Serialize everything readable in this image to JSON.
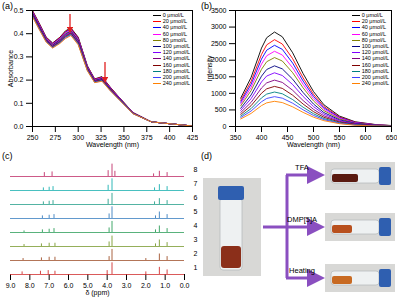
{
  "chart_data": [
    {
      "type": "line",
      "title": "(a)",
      "x_label": "Wavelength (nm)",
      "y_label": "Absorbance",
      "x": [
        250,
        258,
        265,
        272,
        280,
        286,
        292,
        300,
        310,
        318,
        326,
        335,
        345,
        360,
        380,
        425
      ],
      "xlim": [
        250,
        425
      ],
      "xticks": [
        250,
        275,
        300,
        325,
        350,
        375,
        400,
        425
      ],
      "ylim": [
        0,
        0.5
      ],
      "yticks": [
        {
          "value": 0,
          "label": "0.0"
        },
        {
          "value": 0.1,
          "label": "0.1"
        },
        {
          "value": 0.2,
          "label": "0.2"
        },
        {
          "value": 0.3,
          "label": "0.3"
        },
        {
          "value": 0.4,
          "label": "0.4"
        },
        {
          "value": 0.5,
          "label": "0.5"
        }
      ],
      "legend": "top-right",
      "series": [
        {
          "name": "0 μmol/L",
          "color": "#000000",
          "values": [
            0.5,
            0.44,
            0.385,
            0.36,
            0.385,
            0.412,
            0.425,
            0.385,
            0.262,
            0.205,
            0.215,
            0.17,
            0.125,
            0.06,
            0.02,
            0.002
          ]
        },
        {
          "name": "20 μmol/L",
          "color": "#ff0000",
          "values": [
            0.498,
            0.438,
            0.383,
            0.358,
            0.383,
            0.409,
            0.422,
            0.382,
            0.26,
            0.204,
            0.213,
            0.169,
            0.124,
            0.06,
            0.02,
            0.002
          ]
        },
        {
          "name": "40 μmol/L",
          "color": "#0000ff",
          "values": [
            0.495,
            0.435,
            0.381,
            0.356,
            0.38,
            0.406,
            0.419,
            0.379,
            0.258,
            0.202,
            0.211,
            0.167,
            0.123,
            0.059,
            0.02,
            0.002
          ]
        },
        {
          "name": "60 μmol/L",
          "color": "#ff00ff",
          "values": [
            0.493,
            0.433,
            0.379,
            0.354,
            0.378,
            0.403,
            0.416,
            0.376,
            0.256,
            0.201,
            0.21,
            0.166,
            0.122,
            0.059,
            0.02,
            0.002
          ]
        },
        {
          "name": "80 μmol/L",
          "color": "#808000",
          "values": [
            0.49,
            0.43,
            0.377,
            0.352,
            0.375,
            0.4,
            0.413,
            0.373,
            0.254,
            0.199,
            0.208,
            0.164,
            0.121,
            0.058,
            0.02,
            0.002
          ]
        },
        {
          "name": "100 μmol/L",
          "color": "#000080",
          "values": [
            0.488,
            0.428,
            0.375,
            0.35,
            0.373,
            0.397,
            0.41,
            0.37,
            0.252,
            0.198,
            0.206,
            0.163,
            0.12,
            0.058,
            0.02,
            0.002
          ]
        },
        {
          "name": "120 μmol/L",
          "color": "#8000ff",
          "values": [
            0.485,
            0.425,
            0.373,
            0.348,
            0.37,
            0.394,
            0.407,
            0.367,
            0.25,
            0.196,
            0.204,
            0.161,
            0.119,
            0.057,
            0.02,
            0.002
          ]
        },
        {
          "name": "140 μmol/L",
          "color": "#800080",
          "values": [
            0.483,
            0.423,
            0.371,
            0.346,
            0.368,
            0.391,
            0.404,
            0.364,
            0.248,
            0.195,
            0.202,
            0.16,
            0.118,
            0.057,
            0.02,
            0.002
          ]
        },
        {
          "name": "160 μmol/L",
          "color": "#800000",
          "values": [
            0.48,
            0.42,
            0.369,
            0.344,
            0.365,
            0.388,
            0.401,
            0.361,
            0.246,
            0.193,
            0.201,
            0.158,
            0.117,
            0.056,
            0.02,
            0.002
          ]
        },
        {
          "name": "180 μmol/L",
          "color": "#008080",
          "values": [
            0.478,
            0.418,
            0.367,
            0.342,
            0.363,
            0.385,
            0.398,
            0.358,
            0.244,
            0.192,
            0.199,
            0.157,
            0.116,
            0.056,
            0.02,
            0.002
          ]
        },
        {
          "name": "200 μmol/L",
          "color": "#4040ff",
          "values": [
            0.475,
            0.415,
            0.365,
            0.34,
            0.36,
            0.382,
            0.395,
            0.355,
            0.242,
            0.19,
            0.197,
            0.155,
            0.115,
            0.055,
            0.02,
            0.002
          ]
        },
        {
          "name": "240 μmol/L",
          "color": "#ff8000",
          "values": [
            0.473,
            0.413,
            0.363,
            0.338,
            0.358,
            0.379,
            0.392,
            0.352,
            0.24,
            0.189,
            0.195,
            0.154,
            0.114,
            0.055,
            0.02,
            0.002
          ]
        }
      ]
    },
    {
      "type": "line",
      "title": "(b)",
      "x_label": "Wavelength (nm)",
      "y_label": "Intensity",
      "x": [
        360,
        380,
        400,
        410,
        425,
        440,
        460,
        480,
        500,
        520,
        550,
        580,
        620,
        650
      ],
      "xlim": [
        350,
        650
      ],
      "xticks": [
        350,
        400,
        450,
        500,
        550,
        600,
        650
      ],
      "ylim": [
        0,
        3500
      ],
      "yticks": [
        0,
        500,
        1000,
        1500,
        2000,
        2500,
        3000,
        3500
      ],
      "legend": "top-right",
      "series": [
        {
          "name": "0 μmol/L",
          "color": "#000000",
          "values": [
            855,
            1482,
            2366,
            2679,
            2850,
            2708,
            2223,
            1596,
            1055,
            656,
            314,
            143,
            57,
            29
          ]
        },
        {
          "name": "20 μmol/L",
          "color": "#ff0000",
          "values": [
            786,
            1362,
            2175,
            2463,
            2620,
            2489,
            2044,
            1467,
            969,
            603,
            288,
            131,
            52,
            26
          ]
        },
        {
          "name": "40 μmol/L",
          "color": "#0000ff",
          "values": [
            735,
            1274,
            2034,
            2303,
            2450,
            2328,
            1911,
            1372,
            907,
            564,
            270,
            123,
            49,
            25
          ]
        },
        {
          "name": "60 μmol/L",
          "color": "#ff00ff",
          "values": [
            681,
            1180,
            1884,
            2134,
            2270,
            2157,
            1771,
            1271,
            840,
            522,
            250,
            114,
            45,
            23
          ]
        },
        {
          "name": "80 μmol/L",
          "color": "#808000",
          "values": [
            624,
            1082,
            1726,
            1955,
            2080,
            1976,
            1622,
            1165,
            770,
            478,
            229,
            104,
            42,
            21
          ]
        },
        {
          "name": "100 μmol/L",
          "color": "#000080",
          "values": [
            549,
            952,
            1519,
            1720,
            1830,
            1739,
            1427,
            1025,
            677,
            421,
            201,
            92,
            37,
            18
          ]
        },
        {
          "name": "120 μmol/L",
          "color": "#8000ff",
          "values": [
            486,
            842,
            1345,
            1523,
            1620,
            1539,
            1264,
            907,
            599,
            373,
            178,
            81,
            32,
            16
          ]
        },
        {
          "name": "140 μmol/L",
          "color": "#800080",
          "values": [
            420,
            728,
            1162,
            1316,
            1400,
            1330,
            1092,
            784,
            518,
            322,
            154,
            70,
            28,
            14
          ]
        },
        {
          "name": "160 μmol/L",
          "color": "#800000",
          "values": [
            363,
            629,
            1004,
            1137,
            1210,
            1150,
            944,
            678,
            448,
            278,
            133,
            61,
            24,
            12
          ]
        },
        {
          "name": "180 μmol/L",
          "color": "#008080",
          "values": [
            312,
            541,
            863,
            978,
            1040,
            988,
            811,
            582,
            385,
            239,
            114,
            52,
            21,
            10
          ]
        },
        {
          "name": "200 μmol/L",
          "color": "#4040ff",
          "values": [
            270,
            468,
            747,
            846,
            900,
            855,
            702,
            504,
            333,
            207,
            99,
            45,
            18,
            9
          ]
        },
        {
          "name": "240 μmol/L",
          "color": "#ff8000",
          "values": [
            228,
            395,
            631,
            714,
            760,
            722,
            593,
            426,
            281,
            175,
            84,
            38,
            15,
            8
          ]
        }
      ]
    },
    {
      "type": "spectrum_stack",
      "title": "(c)",
      "x_label": "δ (ppm)",
      "xlim": [
        9,
        0
      ],
      "xticks": [
        {
          "value": 9,
          "label": "9.0"
        },
        {
          "value": 8,
          "label": "8.0"
        },
        {
          "value": 7,
          "label": "7.0"
        },
        {
          "value": 6,
          "label": "6.0"
        },
        {
          "value": 5,
          "label": "5.0"
        },
        {
          "value": 4,
          "label": "4.0"
        },
        {
          "value": 3,
          "label": "3.0"
        },
        {
          "value": 2,
          "label": "2.0"
        },
        {
          "value": 1,
          "label": "1.0"
        },
        {
          "value": 0,
          "label": "0.0"
        }
      ],
      "ylim": [
        0,
        1
      ],
      "tick_labels": "x",
      "series": [
        {
          "name": "8",
          "color": "#c0306a",
          "x": [
            7.25,
            6.85,
            3.95,
            3.75,
            3.6,
            1.6,
            1.3,
            0.9
          ],
          "values": [
            0.3,
            0.35,
            0.45,
            0.95,
            0.4,
            0.2,
            0.4,
            0.3
          ]
        },
        {
          "name": "7",
          "color": "#1ab0b0",
          "x": [
            7.3,
            7.0,
            6.8,
            3.95,
            3.75,
            1.55,
            1.3,
            0.9
          ],
          "values": [
            0.2,
            0.25,
            0.3,
            0.4,
            0.9,
            0.2,
            0.45,
            0.3
          ]
        },
        {
          "name": "6",
          "color": "#28a08c",
          "x": [
            7.3,
            7.0,
            6.8,
            3.95,
            3.75,
            1.55,
            1.3,
            0.9
          ],
          "values": [
            0.2,
            0.25,
            0.3,
            0.4,
            0.85,
            0.2,
            0.45,
            0.3
          ]
        },
        {
          "name": "5",
          "color": "#3a7fc0",
          "x": [
            7.35,
            7.0,
            6.75,
            3.9,
            3.75,
            1.5,
            1.3,
            0.9
          ],
          "values": [
            0.2,
            0.25,
            0.3,
            0.35,
            0.9,
            0.2,
            0.5,
            0.3
          ]
        },
        {
          "name": "4",
          "color": "#2e9e5a",
          "x": [
            8.3,
            7.35,
            7.0,
            6.75,
            3.9,
            3.75,
            1.5,
            1.3,
            0.9
          ],
          "values": [
            0.12,
            0.2,
            0.25,
            0.3,
            0.35,
            0.85,
            0.2,
            0.5,
            0.3
          ]
        },
        {
          "name": "3",
          "color": "#7a9a30",
          "x": [
            8.3,
            7.4,
            7.0,
            6.7,
            3.9,
            3.75,
            1.5,
            1.3,
            0.9
          ],
          "values": [
            0.15,
            0.2,
            0.25,
            0.25,
            0.35,
            0.8,
            0.2,
            0.5,
            0.3
          ]
        },
        {
          "name": "2",
          "color": "#a0522d",
          "x": [
            8.35,
            7.4,
            7.0,
            6.7,
            3.9,
            3.75,
            2.0,
            1.3,
            0.9
          ],
          "values": [
            0.15,
            0.2,
            0.25,
            0.25,
            0.3,
            0.85,
            0.15,
            0.5,
            0.3
          ]
        },
        {
          "name": "1",
          "color": "#d03030",
          "x": [
            8.4,
            7.45,
            7.05,
            6.7,
            4.0,
            3.75,
            2.0,
            1.3,
            0.9
          ],
          "values": [
            0.2,
            0.25,
            0.3,
            0.25,
            0.3,
            0.9,
            0.2,
            0.55,
            0.35
          ]
        }
      ]
    }
  ],
  "panel_d": {
    "title": "(d)",
    "treatments": [
      "TFA",
      "DMP[5]A",
      "Heating"
    ]
  }
}
